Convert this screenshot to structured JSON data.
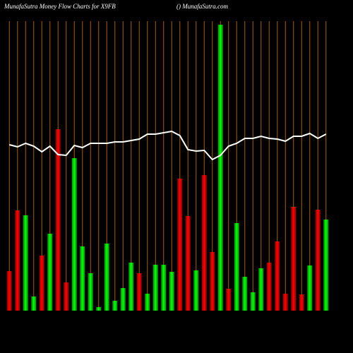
{
  "chart_data": {
    "type": "money-flow",
    "title": "MunafaSutra  Money Flow  Charts for X9FB",
    "subtitle": "() MunafaSutra.com",
    "categories": [
      null,
      null,
      null,
      null,
      null,
      null,
      null,
      null,
      null,
      null,
      null,
      null,
      null,
      null,
      null,
      null,
      null,
      null,
      null,
      null,
      null,
      null,
      null,
      null,
      null,
      null,
      null,
      null,
      null,
      null,
      null,
      null,
      null,
      null,
      null,
      null,
      null,
      null,
      null,
      null
    ],
    "ylim": [
      0,
      405
    ],
    "grid": true,
    "grid_color": "#a85f00",
    "bars": {
      "values": [
        56,
        142,
        135,
        20,
        78,
        109,
        257,
        40,
        216,
        91,
        53,
        5,
        95,
        14,
        32,
        68,
        53,
        24,
        65,
        65,
        55,
        187,
        134,
        57,
        192,
        83,
        405,
        31,
        124,
        48,
        26,
        60,
        68,
        98,
        24,
        147,
        23,
        64,
        143,
        129
      ],
      "colors": [
        "#f00",
        "#f00",
        "#0f0",
        "#0f0",
        "#f00",
        "#0f0",
        "#f00",
        "#f00",
        "#0f0",
        "#0f0",
        "#0f0",
        "#0f0",
        "#0f0",
        "#0f0",
        "#0f0",
        "#0f0",
        "#f00",
        "#0f0",
        "#0f0",
        "#0f0",
        "#0f0",
        "#f00",
        "#f00",
        "#0f0",
        "#f00",
        "#f00",
        "#0f0",
        "#f00",
        "#0f0",
        "#0f0",
        "#0f0",
        "#0f0",
        "#f00",
        "#f00",
        "#f00",
        "#f00",
        "#f00",
        "#0f0",
        "#f00",
        "#0f0"
      ]
    },
    "line": {
      "color": "#ffffff",
      "values": [
        235,
        232,
        237,
        233,
        225,
        233,
        221,
        220,
        234,
        231,
        237,
        237,
        237,
        239,
        239,
        241,
        243,
        250,
        250,
        252,
        254,
        248,
        228,
        226,
        227,
        214,
        220,
        233,
        237,
        244,
        244,
        247,
        244,
        243,
        240,
        247,
        247,
        251,
        244,
        250
      ]
    }
  }
}
